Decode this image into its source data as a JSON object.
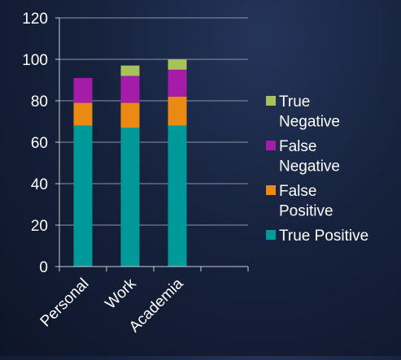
{
  "chart_data": {
    "type": "bar",
    "stacked": true,
    "categories": [
      "Personal",
      "Work",
      "Academia"
    ],
    "category_slots": 4,
    "series": [
      {
        "name": "True Positive",
        "name_lines": [
          "True Positive"
        ],
        "color": "#009999",
        "values": [
          68,
          67,
          68
        ]
      },
      {
        "name": "False Positive",
        "name_lines": [
          "False",
          "Positive"
        ],
        "color": "#ea8a13",
        "values": [
          11,
          12,
          14
        ]
      },
      {
        "name": "False Negative",
        "name_lines": [
          "False",
          "Negative"
        ],
        "color": "#a51ca8",
        "values": [
          12,
          13,
          13
        ]
      },
      {
        "name": "True Negative",
        "name_lines": [
          "True",
          "Negative"
        ],
        "color": "#a8c25a",
        "values": [
          0,
          5,
          5
        ]
      }
    ],
    "ylim": [
      0,
      120
    ],
    "yticks": [
      0,
      20,
      40,
      60,
      80,
      100,
      120
    ],
    "grid": true,
    "legend_position": "right",
    "title": "",
    "xlabel": "",
    "ylabel": ""
  }
}
